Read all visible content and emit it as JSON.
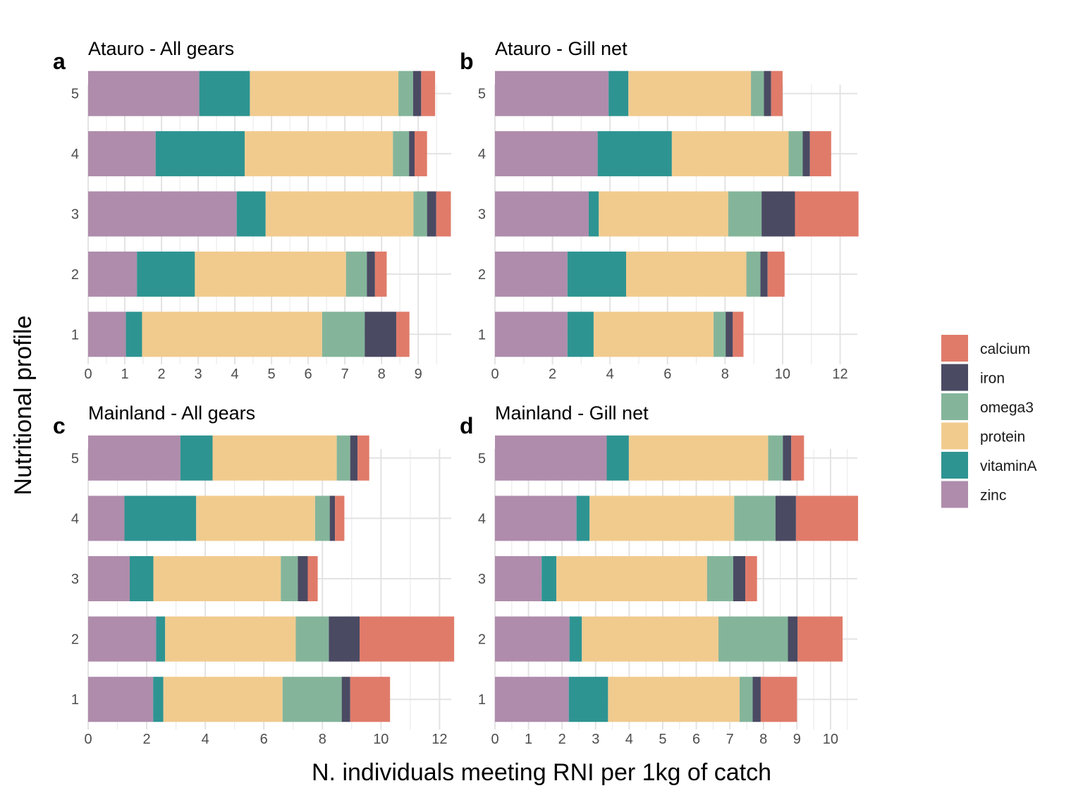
{
  "chart_data": {
    "type": "bar",
    "orientation": "horizontal",
    "stacked": true,
    "xlabel": "N. individuals meeting RNI per 1kg of catch",
    "ylabel": "Nutritional profile",
    "categories": [
      "1",
      "2",
      "3",
      "4",
      "5"
    ],
    "grid": true,
    "legend_position": "right",
    "legend": [
      {
        "name": "calcium",
        "color": "#E07B6A"
      },
      {
        "name": "iron",
        "color": "#4A4A63"
      },
      {
        "name": "omega3",
        "color": "#84B59A"
      },
      {
        "name": "protein",
        "color": "#F1CB8E"
      },
      {
        "name": "vitaminA",
        "color": "#2E9492"
      },
      {
        "name": "zinc",
        "color": "#AF8CAB"
      }
    ],
    "stack_order": [
      "zinc",
      "vitaminA",
      "protein",
      "omega3",
      "iron",
      "calcium"
    ],
    "panels": [
      {
        "tag": "a",
        "title": "Atauro - All gears",
        "xlim": [
          0,
          9.9
        ],
        "xticks": [
          0,
          1,
          2,
          3,
          4,
          5,
          6,
          7,
          8,
          9
        ],
        "series": [
          {
            "name": "zinc",
            "values": [
              1.03,
              1.33,
              4.05,
              1.84,
              3.03
            ]
          },
          {
            "name": "vitaminA",
            "values": [
              0.44,
              1.58,
              0.79,
              2.43,
              1.38
            ]
          },
          {
            "name": "protein",
            "values": [
              4.91,
              4.12,
              4.03,
              4.04,
              4.05
            ]
          },
          {
            "name": "omega3",
            "values": [
              1.16,
              0.57,
              0.37,
              0.44,
              0.4
            ]
          },
          {
            "name": "iron",
            "values": [
              0.86,
              0.22,
              0.25,
              0.15,
              0.22
            ]
          },
          {
            "name": "calcium",
            "values": [
              0.36,
              0.32,
              0.4,
              0.34,
              0.38
            ]
          }
        ]
      },
      {
        "tag": "b",
        "title": "Atauro - Gill net",
        "xlim": [
          0,
          12.6
        ],
        "xticks": [
          0,
          2,
          4,
          6,
          8,
          10,
          12
        ],
        "series": [
          {
            "name": "zinc",
            "values": [
              2.52,
              2.52,
              3.26,
              3.57,
              3.95
            ]
          },
          {
            "name": "vitaminA",
            "values": [
              0.91,
              2.04,
              0.35,
              2.58,
              0.69
            ]
          },
          {
            "name": "protein",
            "values": [
              4.17,
              4.18,
              4.5,
              4.06,
              4.26
            ]
          },
          {
            "name": "omega3",
            "values": [
              0.42,
              0.49,
              1.16,
              0.49,
              0.45
            ]
          },
          {
            "name": "iron",
            "values": [
              0.25,
              0.25,
              1.16,
              0.25,
              0.25
            ]
          },
          {
            "name": "calcium",
            "values": [
              0.37,
              0.59,
              2.21,
              0.74,
              0.4
            ]
          }
        ]
      },
      {
        "tag": "c",
        "title": "Mainland - All gears",
        "xlim": [
          0,
          12.4
        ],
        "xticks": [
          0,
          2,
          4,
          6,
          8,
          10,
          12
        ],
        "series": [
          {
            "name": "zinc",
            "values": [
              2.22,
              2.32,
              1.42,
              1.24,
              3.15
            ]
          },
          {
            "name": "vitaminA",
            "values": [
              0.35,
              0.31,
              0.81,
              2.45,
              1.1
            ]
          },
          {
            "name": "protein",
            "values": [
              4.07,
              4.46,
              4.35,
              4.06,
              4.24
            ]
          },
          {
            "name": "omega3",
            "values": [
              2.02,
              1.13,
              0.58,
              0.5,
              0.46
            ]
          },
          {
            "name": "iron",
            "values": [
              0.29,
              1.05,
              0.34,
              0.18,
              0.25
            ]
          },
          {
            "name": "calcium",
            "values": [
              1.36,
              3.23,
              0.34,
              0.32,
              0.4
            ]
          }
        ]
      },
      {
        "tag": "d",
        "title": "Mainland - Gill net",
        "xlim": [
          0,
          10.8
        ],
        "xticks": [
          0,
          1,
          2,
          3,
          4,
          5,
          6,
          7,
          8,
          9,
          10
        ],
        "series": [
          {
            "name": "zinc",
            "values": [
              2.2,
              2.22,
              1.39,
              2.43,
              3.33
            ]
          },
          {
            "name": "vitaminA",
            "values": [
              1.17,
              0.37,
              0.44,
              0.39,
              0.66
            ]
          },
          {
            "name": "protein",
            "values": [
              3.92,
              4.07,
              4.49,
              4.31,
              4.15
            ]
          },
          {
            "name": "omega3",
            "values": [
              0.39,
              2.07,
              0.78,
              1.23,
              0.44
            ]
          },
          {
            "name": "iron",
            "values": [
              0.24,
              0.29,
              0.36,
              0.61,
              0.25
            ]
          },
          {
            "name": "calcium",
            "values": [
              1.08,
              1.34,
              0.35,
              1.85,
              0.38
            ]
          }
        ]
      }
    ]
  }
}
